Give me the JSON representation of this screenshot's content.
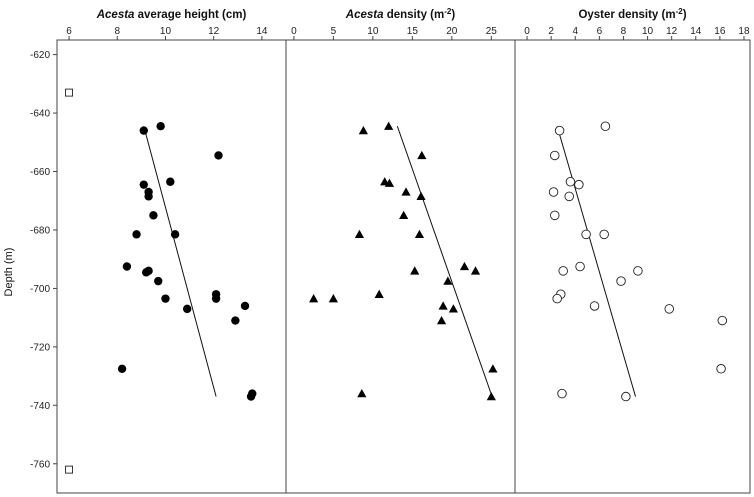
{
  "chart_data": {
    "type": "scatter",
    "ylabel": "Depth (m)",
    "ylim": [
      -770,
      -615
    ],
    "yticks": [
      -620,
      -640,
      -660,
      -680,
      -700,
      -720,
      -740,
      -760
    ],
    "panels": [
      {
        "title_italic": "Acesta",
        "title_rest": " average height (cm)",
        "title_sup": "",
        "xlim": [
          5.5,
          15
        ],
        "xticks": [
          6,
          8,
          10,
          12,
          14
        ],
        "marker": "filled-circle",
        "points": [
          [
            9.1,
            -646
          ],
          [
            9.8,
            -644.5
          ],
          [
            12.2,
            -654.5
          ],
          [
            10.2,
            -663.5
          ],
          [
            9.1,
            -664.5
          ],
          [
            9.3,
            -667
          ],
          [
            9.3,
            -668.5
          ],
          [
            9.5,
            -675
          ],
          [
            8.8,
            -681.5
          ],
          [
            10.4,
            -681.5
          ],
          [
            8.4,
            -692.5
          ],
          [
            9.3,
            -694
          ],
          [
            9.2,
            -694.5
          ],
          [
            9.7,
            -697.5
          ],
          [
            12.1,
            -702
          ],
          [
            12.1,
            -703.5
          ],
          [
            10,
            -703.5
          ],
          [
            10.9,
            -707
          ],
          [
            13.3,
            -706
          ],
          [
            12.9,
            -711
          ],
          [
            8.2,
            -727.5
          ],
          [
            13.6,
            -736
          ],
          [
            13.55,
            -737
          ]
        ],
        "trend": [
          [
            9.1,
            -644.5
          ],
          [
            12.1,
            -737
          ]
        ],
        "extra_markers": [
          {
            "marker": "open-square",
            "x": 6,
            "y": -633
          },
          {
            "marker": "open-square",
            "x": 6,
            "y": -762
          }
        ]
      },
      {
        "title_italic": "Acesta",
        "title_rest": " density (m",
        "title_sup": "-2",
        "title_end": ")",
        "xlim": [
          -1,
          28
        ],
        "xticks": [
          0,
          5,
          10,
          15,
          20,
          25
        ],
        "marker": "filled-triangle",
        "points": [
          [
            8.8,
            -646
          ],
          [
            12,
            -644.5
          ],
          [
            16.2,
            -654.5
          ],
          [
            11.5,
            -663.5
          ],
          [
            12.1,
            -664
          ],
          [
            14.2,
            -667
          ],
          [
            16.1,
            -668.5
          ],
          [
            13.9,
            -675
          ],
          [
            15.9,
            -681.5
          ],
          [
            8.3,
            -681.5
          ],
          [
            21.6,
            -692.5
          ],
          [
            15.3,
            -694
          ],
          [
            23,
            -694
          ],
          [
            19.5,
            -697.5
          ],
          [
            10.8,
            -702
          ],
          [
            2.5,
            -703.5
          ],
          [
            5,
            -703.5
          ],
          [
            18.9,
            -706
          ],
          [
            20.2,
            -707
          ],
          [
            18.7,
            -711
          ],
          [
            25.2,
            -727.5
          ],
          [
            8.6,
            -736
          ],
          [
            25,
            -737
          ]
        ],
        "trend": [
          [
            13.1,
            -644.5
          ],
          [
            25.1,
            -737
          ]
        ]
      },
      {
        "title_italic": "",
        "title_rest": "Oyster density (m",
        "title_sup": "-2",
        "title_end": ")",
        "xlim": [
          -1,
          18.5
        ],
        "xticks": [
          0,
          2,
          4,
          6,
          8,
          10,
          12,
          14,
          16,
          18
        ],
        "marker": "open-circle",
        "points": [
          [
            2.7,
            -646
          ],
          [
            6.5,
            -644.5
          ],
          [
            2.3,
            -654.5
          ],
          [
            4.3,
            -664.5
          ],
          [
            3.6,
            -663.5
          ],
          [
            2.2,
            -667
          ],
          [
            3.5,
            -668.5
          ],
          [
            2.3,
            -675
          ],
          [
            4.9,
            -681.5
          ],
          [
            6.4,
            -681.5
          ],
          [
            4.4,
            -692.5
          ],
          [
            3,
            -694
          ],
          [
            9.2,
            -694
          ],
          [
            7.8,
            -697.5
          ],
          [
            2.8,
            -702
          ],
          [
            2.5,
            -703.5
          ],
          [
            5.6,
            -706
          ],
          [
            11.8,
            -707
          ],
          [
            16.2,
            -711
          ],
          [
            16.1,
            -727.5
          ],
          [
            2.9,
            -736
          ],
          [
            8.2,
            -737
          ]
        ],
        "trend": [
          [
            2.5,
            -644.5
          ],
          [
            9,
            -737
          ]
        ]
      }
    ]
  }
}
